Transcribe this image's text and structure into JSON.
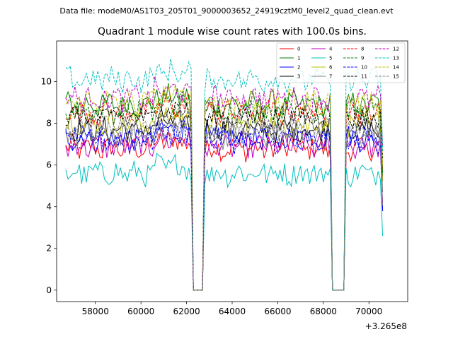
{
  "chart_data": {
    "type": "line",
    "suptitle": "Data file: modeM0/AS1T03_205T01_9000003652_24919cztM0_level2_quad_clean.evt",
    "title": "Quadrant 1 module wise count rates with 100.0s bins.",
    "xlabel": "",
    "ylabel": "",
    "x_offset_text": "+3.265e8",
    "x_offset": 326500000,
    "xlim": [
      56300,
      71700
    ],
    "ylim": [
      -0.55,
      11.95
    ],
    "x_ticks": [
      58000,
      60000,
      62000,
      64000,
      66000,
      68000,
      70000
    ],
    "x_tick_labels": [
      "58000",
      "60000",
      "62000",
      "64000",
      "66000",
      "68000",
      "70000"
    ],
    "y_ticks": [
      0,
      2,
      4,
      6,
      8,
      10
    ],
    "y_tick_labels": [
      "0",
      "2",
      "4",
      "6",
      "8",
      "10"
    ],
    "x_range": {
      "start": 56700,
      "end": 70600,
      "step": 100
    },
    "gaps": [
      [
        62300,
        62700
      ],
      [
        68400,
        68900
      ]
    ],
    "legend_position": "top-right",
    "series": [
      {
        "name": "0",
        "color": "#ff0000",
        "style": "solid",
        "baseline": 6.8
      },
      {
        "name": "1",
        "color": "#008000",
        "style": "solid",
        "baseline": 8.9
      },
      {
        "name": "2",
        "color": "#0000ff",
        "style": "solid",
        "baseline": 7.3
      },
      {
        "name": "3",
        "color": "#000000",
        "style": "solid",
        "baseline": 7.7
      },
      {
        "name": "4",
        "color": "#bf00bf",
        "style": "solid",
        "baseline": 6.9
      },
      {
        "name": "5",
        "color": "#00bfbf",
        "style": "solid",
        "baseline": 5.6
      },
      {
        "name": "6",
        "color": "#bfbf00",
        "style": "solid",
        "baseline": 8.0
      },
      {
        "name": "7",
        "color": "#808080",
        "style": "solid",
        "baseline": 7.4
      },
      {
        "name": "8",
        "color": "#ff0000",
        "style": "dashed",
        "baseline": 8.5
      },
      {
        "name": "9",
        "color": "#008000",
        "style": "dashed",
        "baseline": 8.6
      },
      {
        "name": "10",
        "color": "#0000ff",
        "style": "dashed",
        "baseline": 7.2
      },
      {
        "name": "11",
        "color": "#000000",
        "style": "dashed",
        "baseline": 8.3
      },
      {
        "name": "12",
        "color": "#bf00bf",
        "style": "dashed",
        "baseline": 9.2
      },
      {
        "name": "13",
        "color": "#00bfbf",
        "style": "dashed",
        "baseline": 10.1
      },
      {
        "name": "14",
        "color": "#bfbf00",
        "style": "dashed",
        "baseline": 9.0
      },
      {
        "name": "15",
        "color": "#808080",
        "style": "dashed",
        "baseline": 7.8
      }
    ]
  }
}
